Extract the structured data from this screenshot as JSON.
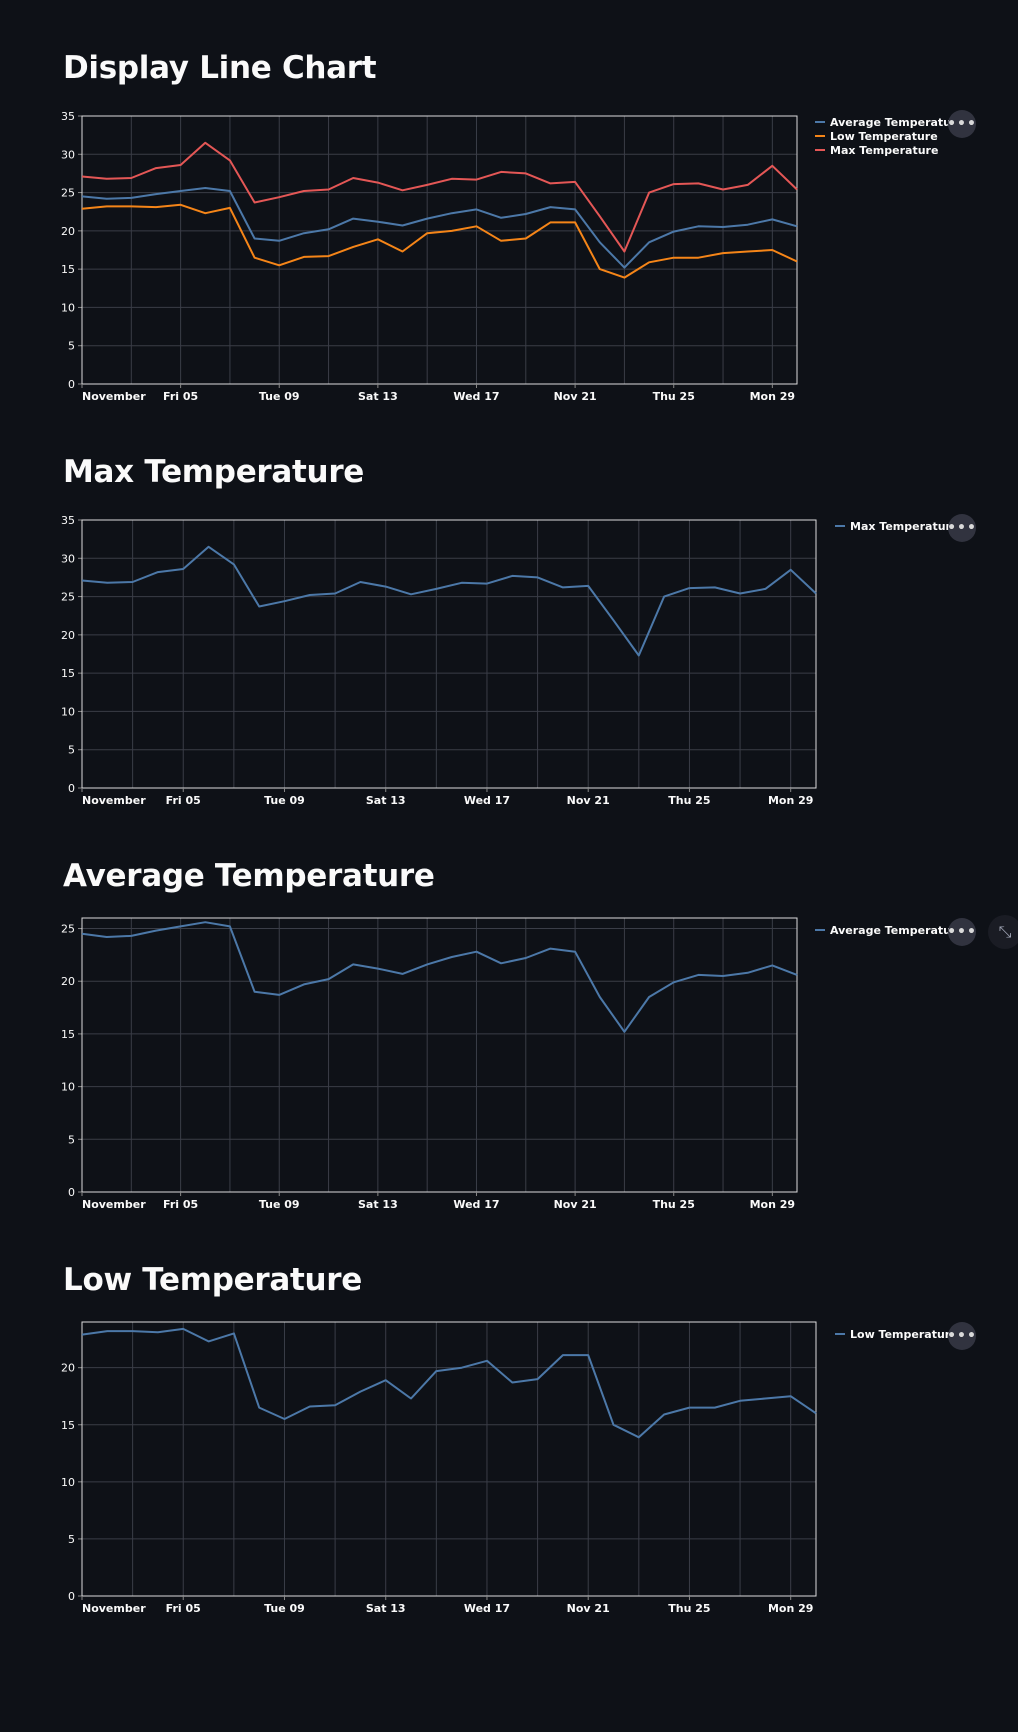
{
  "page": {
    "background": "#0e1117"
  },
  "icons": {
    "more": "more-options-icon",
    "expand": "fullscreen-icon"
  },
  "sections": [
    {
      "title": "Display Line Chart",
      "more_label": "•••"
    },
    {
      "title": "Max Temperature",
      "more_label": "•••"
    },
    {
      "title": "Average Temperature",
      "more_label": "•••",
      "expand_label": "⤡"
    },
    {
      "title": "Low Temperature",
      "more_label": "•••"
    }
  ],
  "chart_data": [
    {
      "type": "line",
      "title": "",
      "x": [
        "2021-11-01",
        "2021-11-02",
        "2021-11-03",
        "2021-11-04",
        "2021-11-05",
        "2021-11-06",
        "2021-11-07",
        "2021-11-08",
        "2021-11-09",
        "2021-11-10",
        "2021-11-11",
        "2021-11-12",
        "2021-11-13",
        "2021-11-14",
        "2021-11-15",
        "2021-11-16",
        "2021-11-17",
        "2021-11-18",
        "2021-11-19",
        "2021-11-20",
        "2021-11-21",
        "2021-11-22",
        "2021-11-23",
        "2021-11-24",
        "2021-11-25",
        "2021-11-26",
        "2021-11-27",
        "2021-11-28",
        "2021-11-29",
        "2021-11-30"
      ],
      "x_ticks": [
        "November",
        "Fri 05",
        "Tue 09",
        "Sat 13",
        "Wed 17",
        "Nov 21",
        "Thu 25",
        "Mon 29"
      ],
      "ylim": [
        0,
        35
      ],
      "y_ticks": [
        0,
        5,
        10,
        15,
        20,
        25,
        30,
        35
      ],
      "grid": true,
      "legend": "right",
      "series": [
        {
          "name": "Average Temperature",
          "color": "#4c78a8",
          "values": [
            24.5,
            24.2,
            24.3,
            24.8,
            25.2,
            25.6,
            25.2,
            19.0,
            18.7,
            19.7,
            20.2,
            21.6,
            21.2,
            20.7,
            21.6,
            22.3,
            22.8,
            21.7,
            22.2,
            23.1,
            22.8,
            18.5,
            15.2,
            18.5,
            19.9,
            20.6,
            20.5,
            20.8,
            21.5,
            20.6
          ]
        },
        {
          "name": "Low Temperature",
          "color": "#f58518",
          "values": [
            22.9,
            23.2,
            23.2,
            23.1,
            23.4,
            22.3,
            23.0,
            16.5,
            15.5,
            16.6,
            16.7,
            17.9,
            18.9,
            17.3,
            19.7,
            20.0,
            20.6,
            18.7,
            19.0,
            21.1,
            21.1,
            15.0,
            13.9,
            15.9,
            16.5,
            16.5,
            17.1,
            17.3,
            17.5,
            16.0
          ]
        },
        {
          "name": "Max Temperature",
          "color": "#e45756",
          "values": [
            27.1,
            26.8,
            26.9,
            28.2,
            28.6,
            31.5,
            29.2,
            23.7,
            24.4,
            25.2,
            25.4,
            26.9,
            26.3,
            25.3,
            26.0,
            26.8,
            26.7,
            27.7,
            27.5,
            26.2,
            26.4,
            21.9,
            17.3,
            25.0,
            26.1,
            26.2,
            25.4,
            26.0,
            28.5,
            25.4
          ]
        }
      ]
    },
    {
      "type": "line",
      "title": "",
      "x": [
        "2021-11-01",
        "2021-11-02",
        "2021-11-03",
        "2021-11-04",
        "2021-11-05",
        "2021-11-06",
        "2021-11-07",
        "2021-11-08",
        "2021-11-09",
        "2021-11-10",
        "2021-11-11",
        "2021-11-12",
        "2021-11-13",
        "2021-11-14",
        "2021-11-15",
        "2021-11-16",
        "2021-11-17",
        "2021-11-18",
        "2021-11-19",
        "2021-11-20",
        "2021-11-21",
        "2021-11-22",
        "2021-11-23",
        "2021-11-24",
        "2021-11-25",
        "2021-11-26",
        "2021-11-27",
        "2021-11-28",
        "2021-11-29",
        "2021-11-30"
      ],
      "x_ticks": [
        "November",
        "Fri 05",
        "Tue 09",
        "Sat 13",
        "Wed 17",
        "Nov 21",
        "Thu 25",
        "Mon 29"
      ],
      "ylim": [
        0,
        35
      ],
      "y_ticks": [
        0,
        5,
        10,
        15,
        20,
        25,
        30,
        35
      ],
      "grid": true,
      "legend": "right",
      "series": [
        {
          "name": "Max Temperature",
          "color": "#4c78a8",
          "values": [
            27.1,
            26.8,
            26.9,
            28.2,
            28.6,
            31.5,
            29.2,
            23.7,
            24.4,
            25.2,
            25.4,
            26.9,
            26.3,
            25.3,
            26.0,
            26.8,
            26.7,
            27.7,
            27.5,
            26.2,
            26.4,
            21.9,
            17.3,
            25.0,
            26.1,
            26.2,
            25.4,
            26.0,
            28.5,
            25.4
          ]
        }
      ]
    },
    {
      "type": "line",
      "title": "",
      "x": [
        "2021-11-01",
        "2021-11-02",
        "2021-11-03",
        "2021-11-04",
        "2021-11-05",
        "2021-11-06",
        "2021-11-07",
        "2021-11-08",
        "2021-11-09",
        "2021-11-10",
        "2021-11-11",
        "2021-11-12",
        "2021-11-13",
        "2021-11-14",
        "2021-11-15",
        "2021-11-16",
        "2021-11-17",
        "2021-11-18",
        "2021-11-19",
        "2021-11-20",
        "2021-11-21",
        "2021-11-22",
        "2021-11-23",
        "2021-11-24",
        "2021-11-25",
        "2021-11-26",
        "2021-11-27",
        "2021-11-28",
        "2021-11-29",
        "2021-11-30"
      ],
      "x_ticks": [
        "November",
        "Fri 05",
        "Tue 09",
        "Sat 13",
        "Wed 17",
        "Nov 21",
        "Thu 25",
        "Mon 29"
      ],
      "ylim": [
        0,
        26
      ],
      "y_ticks": [
        0,
        5,
        10,
        15,
        20,
        25
      ],
      "grid": true,
      "legend": "right",
      "series": [
        {
          "name": "Average Temperature",
          "color": "#4c78a8",
          "values": [
            24.5,
            24.2,
            24.3,
            24.8,
            25.2,
            25.6,
            25.2,
            19.0,
            18.7,
            19.7,
            20.2,
            21.6,
            21.2,
            20.7,
            21.6,
            22.3,
            22.8,
            21.7,
            22.2,
            23.1,
            22.8,
            18.5,
            15.2,
            18.5,
            19.9,
            20.6,
            20.5,
            20.8,
            21.5,
            20.6
          ]
        }
      ]
    },
    {
      "type": "line",
      "title": "",
      "x": [
        "2021-11-01",
        "2021-11-02",
        "2021-11-03",
        "2021-11-04",
        "2021-11-05",
        "2021-11-06",
        "2021-11-07",
        "2021-11-08",
        "2021-11-09",
        "2021-11-10",
        "2021-11-11",
        "2021-11-12",
        "2021-11-13",
        "2021-11-14",
        "2021-11-15",
        "2021-11-16",
        "2021-11-17",
        "2021-11-18",
        "2021-11-19",
        "2021-11-20",
        "2021-11-21",
        "2021-11-22",
        "2021-11-23",
        "2021-11-24",
        "2021-11-25",
        "2021-11-26",
        "2021-11-27",
        "2021-11-28",
        "2021-11-29",
        "2021-11-30"
      ],
      "x_ticks": [
        "November",
        "Fri 05",
        "Tue 09",
        "Sat 13",
        "Wed 17",
        "Nov 21",
        "Thu 25",
        "Mon 29"
      ],
      "ylim": [
        0,
        24
      ],
      "y_ticks": [
        0,
        5,
        10,
        15,
        20
      ],
      "grid": true,
      "legend": "right",
      "series": [
        {
          "name": "Low Temperature",
          "color": "#4c78a8",
          "values": [
            22.9,
            23.2,
            23.2,
            23.1,
            23.4,
            22.3,
            23.0,
            16.5,
            15.5,
            16.6,
            16.7,
            17.9,
            18.9,
            17.3,
            19.7,
            20.0,
            20.6,
            18.7,
            19.0,
            21.1,
            21.1,
            15.0,
            13.9,
            15.9,
            16.5,
            16.5,
            17.1,
            17.3,
            17.5,
            16.0
          ]
        }
      ]
    }
  ]
}
